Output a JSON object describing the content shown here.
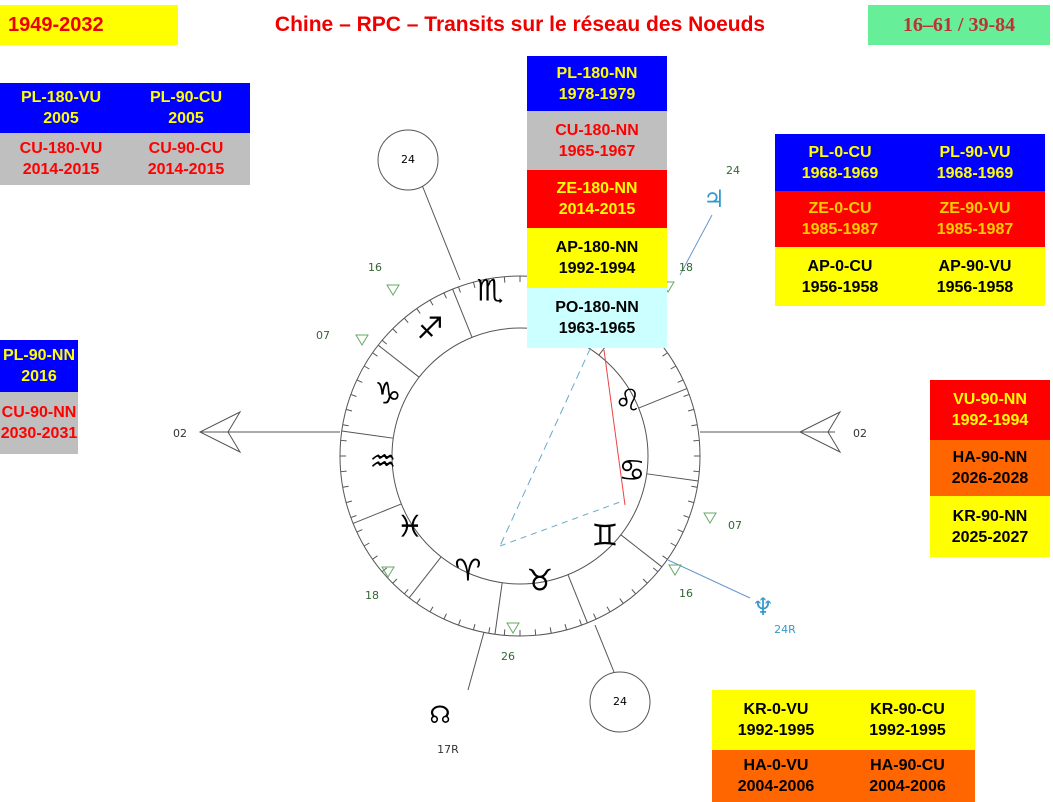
{
  "header": {
    "left": "1949-2032",
    "title": "Chine – RPC – Transits sur le réseau des Noeuds",
    "right": "16–61 / 39-84"
  },
  "boxes": [
    {
      "code": "PL-180-VU",
      "years": "2005"
    },
    {
      "code": "PL-90-CU",
      "years": "2005"
    },
    {
      "code": "CU-180-VU",
      "years": "2014-2015"
    },
    {
      "code": "CU-90-CU",
      "years": "2014-2015"
    },
    {
      "code": "PL-90-NN",
      "years": "2016"
    },
    {
      "code": "CU-90-NN",
      "years": "2030-2031"
    },
    {
      "code": "PL-180-NN",
      "years": "1978-1979"
    },
    {
      "code": "CU-180-NN",
      "years": "1965-1967"
    },
    {
      "code": "ZE-180-NN",
      "years": "2014-2015"
    },
    {
      "code": "AP-180-NN",
      "years": "1992-1994"
    },
    {
      "code": "PO-180-NN",
      "years": "1963-1965"
    },
    {
      "code": "PL-0-CU",
      "years": "1968-1969"
    },
    {
      "code": "PL-90-VU",
      "years": "1968-1969"
    },
    {
      "code": "ZE-0-CU",
      "years": "1985-1987"
    },
    {
      "code": "ZE-90-VU",
      "years": "1985-1987"
    },
    {
      "code": "AP-0-CU",
      "years": "1956-1958"
    },
    {
      "code": "AP-90-VU",
      "years": "1956-1958"
    },
    {
      "code": "VU-90-NN",
      "years": "1992-1994"
    },
    {
      "code": "HA-90-NN",
      "years": "2026-2028"
    },
    {
      "code": "KR-90-NN",
      "years": "2025-2027"
    },
    {
      "code": "KR-0-VU",
      "years": "1992-1995"
    },
    {
      "code": "KR-90-CU",
      "years": "1992-1995"
    },
    {
      "code": "HA-0-VU",
      "years": "2004-2006"
    },
    {
      "code": "HA-90-CU",
      "years": "2004-2006"
    }
  ],
  "wheel": {
    "signs": [
      "♏",
      "♐",
      "♑",
      "♒",
      "♓",
      "♈",
      "♉",
      "♊",
      "♋",
      "♌"
    ],
    "degrees": [
      "16",
      "07",
      "18",
      "26",
      "16",
      "07",
      "18",
      "24",
      "02",
      "02"
    ],
    "circles": [
      "24",
      "24"
    ],
    "planets": [
      "♃",
      "♆",
      "☊"
    ],
    "planet_labels": [
      "24R",
      "17R"
    ]
  }
}
